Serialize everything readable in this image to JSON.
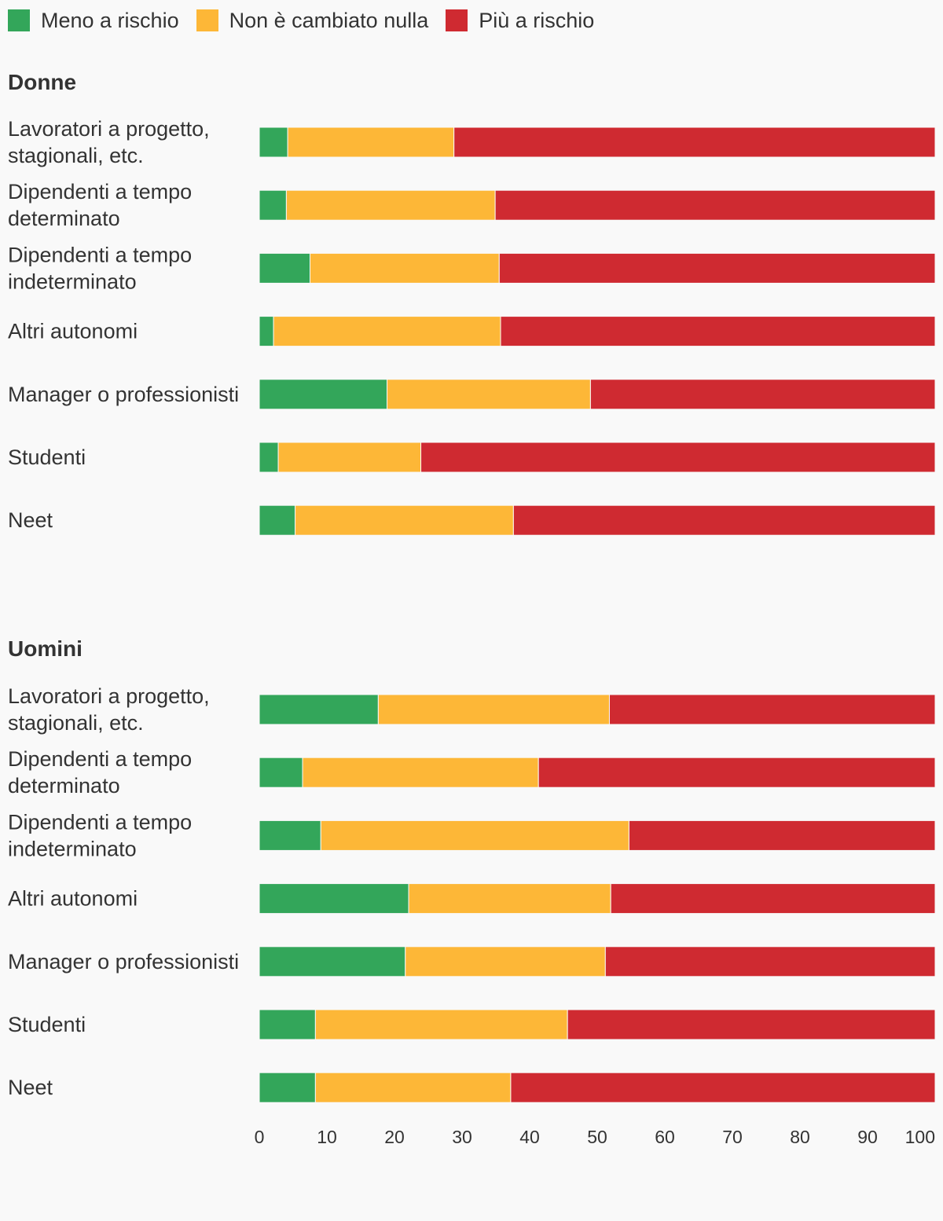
{
  "chart_data": {
    "type": "bar",
    "orientation": "horizontal",
    "stacked": true,
    "xlim": [
      0,
      100
    ],
    "x_ticks": [
      "0",
      "10",
      "20",
      "30",
      "40",
      "50",
      "60",
      "70",
      "80",
      "90",
      "100"
    ],
    "grid": false,
    "legend_position": "top-left",
    "legend": [
      {
        "name": "Meno a rischio",
        "color": "#33a65a"
      },
      {
        "name": "Non è cambiato nulla",
        "color": "#fdb737"
      },
      {
        "name": "Più a rischio",
        "color": "#cf2a31"
      }
    ],
    "panels": [
      {
        "title": "Donne",
        "categories": [
          [
            "Lavoratori a progetto,",
            "stagionali, etc."
          ],
          [
            "Dipendenti a tempo",
            "determinato"
          ],
          [
            "Dipendenti a tempo",
            "indeterminato"
          ],
          [
            "Altri autonomi"
          ],
          [
            "Manager o professionisti"
          ],
          [
            "Studenti"
          ],
          [
            "Neet"
          ]
        ],
        "series": [
          {
            "name": "Meno a rischio",
            "values": [
              4.2,
              4.0,
              7.5,
              2.1,
              18.9,
              2.8,
              5.3
            ]
          },
          {
            "name": "Non è cambiato nulla",
            "values": [
              24.6,
              30.9,
              28.0,
              33.6,
              30.1,
              21.1,
              32.3
            ]
          },
          {
            "name": "Più a rischio",
            "values": [
              71.2,
              65.1,
              64.5,
              64.3,
              51.0,
              76.1,
              62.4
            ]
          }
        ]
      },
      {
        "title": "Uomini",
        "categories": [
          [
            "Lavoratori a progetto,",
            "stagionali, etc."
          ],
          [
            "Dipendenti a tempo",
            "determinato"
          ],
          [
            "Dipendenti a tempo",
            "indeterminato"
          ],
          [
            "Altri autonomi"
          ],
          [
            "Manager o professionisti"
          ],
          [
            "Studenti"
          ],
          [
            "Neet"
          ]
        ],
        "series": [
          {
            "name": "Meno a rischio",
            "values": [
              17.6,
              6.4,
              9.1,
              22.1,
              21.6,
              8.3,
              8.3
            ]
          },
          {
            "name": "Non è cambiato nulla",
            "values": [
              34.2,
              34.9,
              45.6,
              29.9,
              29.6,
              37.3,
              28.9
            ]
          },
          {
            "name": "Più a rischio",
            "values": [
              48.2,
              58.7,
              45.3,
              48.0,
              48.8,
              54.4,
              62.8
            ]
          }
        ]
      }
    ]
  }
}
